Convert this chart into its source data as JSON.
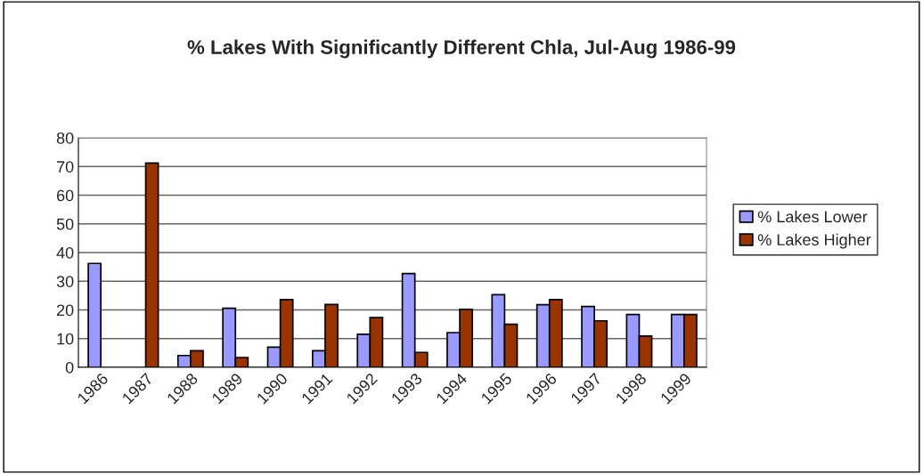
{
  "chart_data": {
    "type": "bar",
    "title": "% Lakes With Significantly Different Chla, Jul-Aug 1986-99",
    "categories": [
      "1986",
      "1987",
      "1988",
      "1989",
      "1990",
      "1991",
      "1992",
      "1993",
      "1994",
      "1995",
      "1996",
      "1997",
      "1998",
      "1999"
    ],
    "series": [
      {
        "name": "% Lakes Lower",
        "color": "#9999ff",
        "values": [
          36.2,
          null,
          4.1,
          20.6,
          7.0,
          5.8,
          11.5,
          32.7,
          12.1,
          25.3,
          21.8,
          21.2,
          18.4,
          18.4
        ]
      },
      {
        "name": "% Lakes Higher",
        "color": "#993300",
        "values": [
          null,
          71.2,
          5.8,
          3.4,
          23.6,
          21.9,
          17.3,
          5.2,
          20.2,
          15.0,
          23.6,
          16.2,
          10.9,
          18.4
        ]
      }
    ],
    "ylim": [
      0,
      80
    ],
    "yticks": [
      0,
      10,
      20,
      30,
      40,
      50,
      60,
      70,
      80
    ],
    "grid": "y",
    "legend": "right"
  }
}
